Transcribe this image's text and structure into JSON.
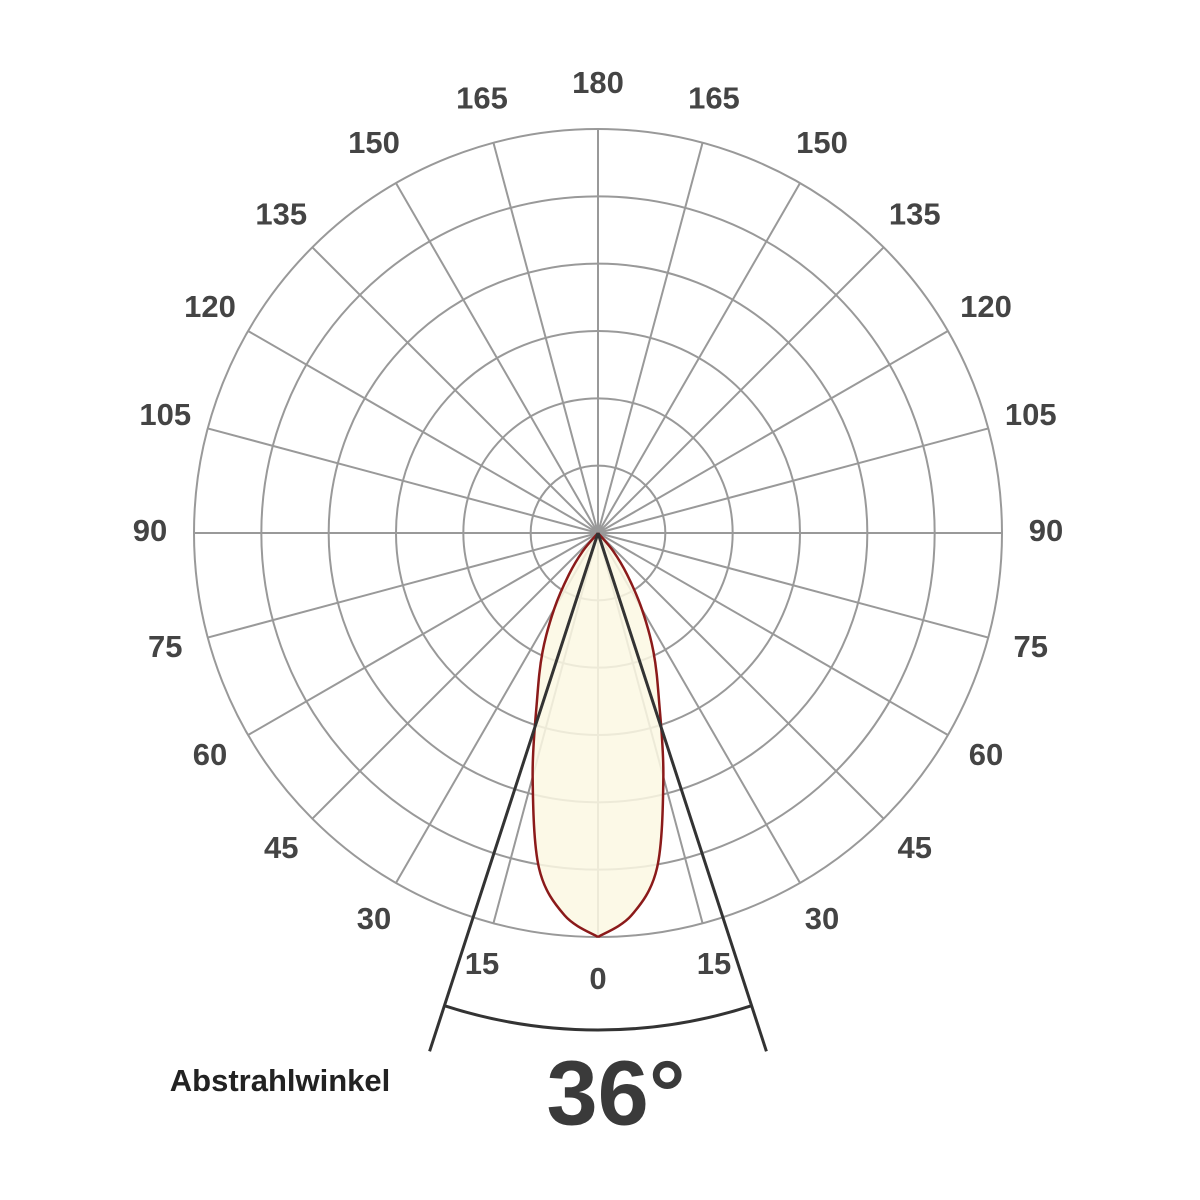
{
  "chart_data": {
    "type": "polar",
    "angle_ticks": [
      0,
      15,
      30,
      45,
      60,
      75,
      90,
      105,
      120,
      135,
      150,
      165,
      180
    ],
    "rlim": [
      0,
      6
    ],
    "rticks": [
      1,
      2,
      3,
      4,
      5,
      6
    ],
    "series": [
      {
        "color": "#8b1a1a",
        "fill": "#fbf8e3",
        "x": [
          0,
          5,
          10,
          15,
          20,
          25,
          30,
          35,
          40,
          45
        ],
        "values": [
          6,
          5.7,
          5.05,
          3.75,
          2.65,
          1.95,
          1.3,
          0.75,
          0.35,
          0
        ]
      }
    ],
    "beam_angle": {
      "value": 36,
      "label": "36°"
    },
    "beam_label": "Abstrahlwinkel",
    "grid": true
  }
}
